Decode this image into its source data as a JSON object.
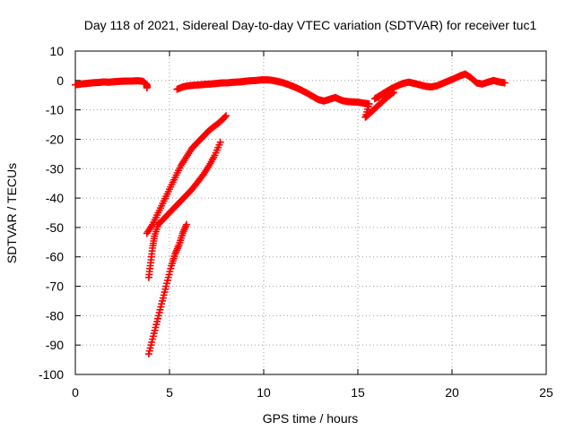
{
  "chart_data": {
    "type": "scatter",
    "title": "Day 118 of 2021, Sidereal Day-to-day VTEC variation (SDTVAR) for receiver tuc1",
    "xlabel": "GPS time / hours",
    "ylabel": "SDTVAR / TECUs",
    "xlim": [
      0,
      25
    ],
    "ylim": [
      -100,
      10
    ],
    "xticks": [
      "0",
      "5",
      "10",
      "15",
      "20",
      "25"
    ],
    "yticks": [
      "10",
      "0",
      "-10",
      "-20",
      "-30",
      "-40",
      "-50",
      "-60",
      "-70",
      "-80",
      "-90",
      "-100"
    ],
    "grid": true,
    "marker_color": "#ff0000",
    "marker": "plus",
    "series": [
      {
        "points": [
          [
            0.0,
            -1.5
          ],
          [
            0.3,
            -1.2
          ],
          [
            0.6,
            -1.0
          ],
          [
            0.9,
            -0.8
          ],
          [
            1.2,
            -0.7
          ],
          [
            1.5,
            -0.5
          ],
          [
            1.8,
            -0.6
          ],
          [
            2.1,
            -0.4
          ],
          [
            2.4,
            -0.3
          ],
          [
            2.7,
            -0.2
          ],
          [
            3.0,
            -0.2
          ],
          [
            3.3,
            -0.1
          ],
          [
            3.6,
            -0.3
          ],
          [
            3.8,
            -1.5
          ],
          [
            3.8,
            -2.5
          ],
          [
            5.4,
            -3.0
          ],
          [
            5.7,
            -2.2
          ],
          [
            6.0,
            -1.8
          ],
          [
            6.3,
            -1.6
          ],
          [
            6.6,
            -1.5
          ],
          [
            6.9,
            -1.3
          ],
          [
            7.2,
            -1.2
          ],
          [
            7.5,
            -1.0
          ],
          [
            7.8,
            -0.8
          ],
          [
            8.1,
            -0.8
          ],
          [
            8.4,
            -0.6
          ],
          [
            8.7,
            -0.5
          ],
          [
            9.0,
            -0.3
          ],
          [
            9.3,
            -0.1
          ],
          [
            9.6,
            0.0
          ],
          [
            9.9,
            0.2
          ],
          [
            10.2,
            0.2
          ],
          [
            10.5,
            0.0
          ],
          [
            10.8,
            -0.4
          ],
          [
            11.1,
            -0.9
          ],
          [
            11.4,
            -1.6
          ],
          [
            11.7,
            -2.4
          ],
          [
            12.0,
            -3.3
          ],
          [
            12.3,
            -4.3
          ],
          [
            12.6,
            -5.4
          ],
          [
            12.9,
            -6.5
          ],
          [
            13.2,
            -7.0
          ],
          [
            13.5,
            -6.4
          ],
          [
            13.8,
            -5.8
          ],
          [
            14.0,
            -6.4
          ],
          [
            14.2,
            -6.9
          ],
          [
            14.5,
            -7.2
          ],
          [
            14.8,
            -7.3
          ],
          [
            15.1,
            -7.5
          ],
          [
            15.4,
            -7.8
          ],
          [
            15.6,
            -8.0
          ],
          [
            15.4,
            -12.5
          ],
          [
            15.7,
            -10.8
          ],
          [
            16.0,
            -9.0
          ],
          [
            16.3,
            -7.2
          ],
          [
            16.6,
            -5.5
          ],
          [
            16.9,
            -4.0
          ],
          [
            15.9,
            -6.2
          ],
          [
            16.2,
            -5.0
          ],
          [
            16.5,
            -3.8
          ],
          [
            16.8,
            -2.7
          ],
          [
            17.1,
            -1.8
          ],
          [
            17.4,
            -1.0
          ],
          [
            17.7,
            -0.6
          ],
          [
            18.0,
            -1.0
          ],
          [
            18.3,
            -1.5
          ],
          [
            18.6,
            -2.0
          ],
          [
            18.9,
            -2.2
          ],
          [
            19.2,
            -1.8
          ],
          [
            19.5,
            -1.0
          ],
          [
            19.8,
            -0.2
          ],
          [
            20.1,
            0.6
          ],
          [
            20.4,
            1.5
          ],
          [
            20.7,
            2.2
          ],
          [
            21.0,
            1.0
          ],
          [
            21.3,
            -0.8
          ],
          [
            21.6,
            -1.2
          ],
          [
            21.9,
            -0.6
          ],
          [
            22.2,
            0.0
          ],
          [
            22.5,
            -0.5
          ],
          [
            22.8,
            -0.8
          ]
        ]
      },
      {
        "points": [
          [
            3.8,
            -52
          ],
          [
            4.1,
            -49
          ],
          [
            4.4,
            -45
          ],
          [
            4.7,
            -41
          ],
          [
            5.0,
            -37
          ],
          [
            5.3,
            -33
          ],
          [
            5.6,
            -29
          ],
          [
            5.9,
            -26
          ],
          [
            6.2,
            -23
          ],
          [
            6.5,
            -21
          ],
          [
            6.8,
            -19
          ],
          [
            7.1,
            -17
          ],
          [
            7.4,
            -15.5
          ],
          [
            7.7,
            -14
          ],
          [
            8.0,
            -12
          ]
        ]
      },
      {
        "points": [
          [
            3.9,
            -67
          ],
          [
            4.0,
            -62
          ],
          [
            4.1,
            -57
          ],
          [
            4.2,
            -53
          ],
          [
            4.4,
            -49
          ],
          [
            4.7,
            -47
          ],
          [
            5.0,
            -45
          ],
          [
            5.3,
            -43
          ],
          [
            5.6,
            -41
          ],
          [
            5.9,
            -39
          ],
          [
            6.2,
            -37
          ],
          [
            6.5,
            -34.5
          ],
          [
            6.8,
            -32
          ],
          [
            7.1,
            -29
          ],
          [
            7.4,
            -25.5
          ],
          [
            7.7,
            -21
          ]
        ]
      },
      {
        "points": [
          [
            3.9,
            -93
          ],
          [
            4.1,
            -88
          ],
          [
            4.3,
            -83
          ],
          [
            4.5,
            -78
          ],
          [
            4.7,
            -73
          ],
          [
            4.9,
            -68
          ],
          [
            5.1,
            -63
          ],
          [
            5.3,
            -59
          ],
          [
            5.5,
            -56
          ],
          [
            5.7,
            -52
          ],
          [
            5.9,
            -49
          ]
        ]
      }
    ]
  }
}
